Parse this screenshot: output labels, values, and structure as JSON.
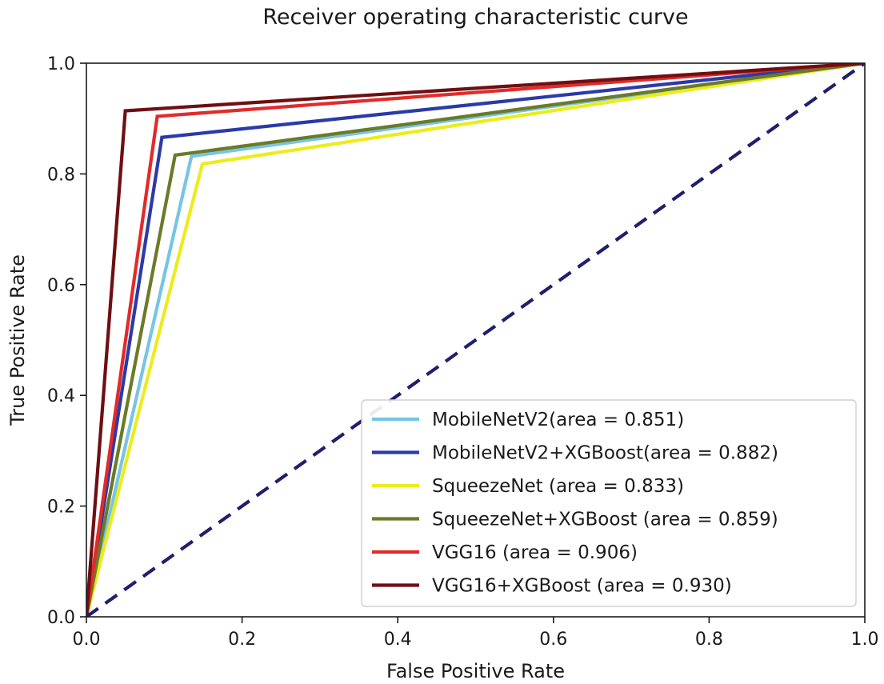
{
  "chart_data": {
    "type": "line",
    "title": "Receiver operating characteristic curve",
    "xlabel": "False Positive Rate",
    "ylabel": "True Positive Rate",
    "xlim": [
      0.0,
      1.0
    ],
    "ylim": [
      0.0,
      1.0
    ],
    "xticks": [
      "0.0",
      "0.2",
      "0.4",
      "0.6",
      "0.8",
      "1.0"
    ],
    "yticks": [
      "0.0",
      "0.2",
      "0.4",
      "0.6",
      "0.8",
      "1.0"
    ],
    "grid": false,
    "legend_position": "lower-right",
    "diagonal": {
      "name": "chance",
      "x": [
        0.0,
        1.0
      ],
      "y": [
        0.0,
        1.0
      ],
      "color": "#1f1f6e"
    },
    "series": [
      {
        "name": "MobileNetV2(area = 0.851)",
        "color": "#76c5e3",
        "x": [
          0.0,
          0.135,
          1.0
        ],
        "y": [
          0.0,
          0.832,
          1.0
        ]
      },
      {
        "name": "MobileNetV2+XGBoost(area = 0.882)",
        "color": "#2b3aa8",
        "x": [
          0.0,
          0.097,
          1.0
        ],
        "y": [
          0.0,
          0.866,
          1.0
        ]
      },
      {
        "name": "SqueezeNet (area = 0.833)",
        "color": "#ecec1c",
        "x": [
          0.0,
          0.149,
          1.0
        ],
        "y": [
          0.0,
          0.818,
          1.0
        ]
      },
      {
        "name": "SqueezeNet+XGBoost (area = 0.859)",
        "color": "#6b7a28",
        "x": [
          0.0,
          0.114,
          1.0
        ],
        "y": [
          0.0,
          0.834,
          1.0
        ]
      },
      {
        "name": "VGG16 (area = 0.906)",
        "color": "#e22a2a",
        "x": [
          0.0,
          0.091,
          1.0
        ],
        "y": [
          0.0,
          0.904,
          1.0
        ]
      },
      {
        "name": "VGG16+XGBoost (area = 0.930)",
        "color": "#6e0f12",
        "x": [
          0.0,
          0.05,
          1.0
        ],
        "y": [
          0.0,
          0.914,
          1.0
        ]
      }
    ]
  }
}
